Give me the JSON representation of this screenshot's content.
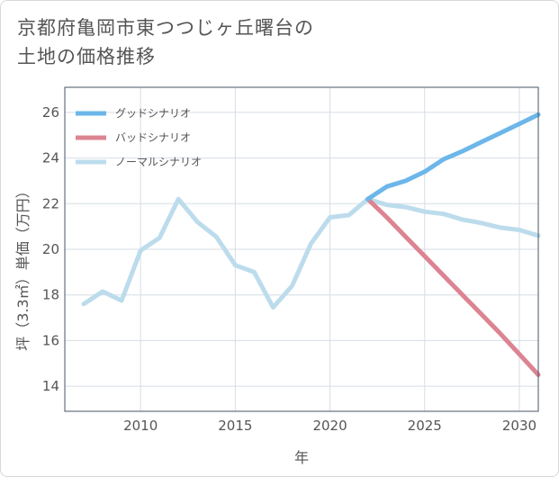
{
  "title_line1": "京都府亀岡市東つつじヶ丘曙台の",
  "title_line2": "土地の価格推移",
  "colors": {
    "good": "#6cb6ea",
    "bad": "#dc8491",
    "normal": "#bcdcec",
    "grid": "#d6dde5",
    "plot_border": "#445566"
  },
  "chart_data": {
    "type": "line",
    "title": "京都府亀岡市東つつじヶ丘曙台の土地の価格推移",
    "xlabel": "年",
    "ylabel": "坪（3.3㎡）単価（万円）",
    "xlim": [
      2006,
      2031
    ],
    "ylim": [
      12.9,
      27.1
    ],
    "xticks": [
      2010,
      2015,
      2020,
      2025,
      2030
    ],
    "yticks": [
      14,
      16,
      18,
      20,
      22,
      24,
      26
    ],
    "legend_position": "top-left",
    "series": [
      {
        "name": "グッドシナリオ",
        "color_key": "good",
        "x": [
          2022,
          2023,
          2024,
          2025,
          2026,
          2027,
          2028,
          2029,
          2030,
          2031
        ],
        "y": [
          22.2,
          22.75,
          23.0,
          23.4,
          23.95,
          24.3,
          24.7,
          25.1,
          25.5,
          25.9
        ]
      },
      {
        "name": "バッドシナリオ",
        "color_key": "bad",
        "x": [
          2022,
          2023,
          2024,
          2025,
          2026,
          2027,
          2028,
          2029,
          2030,
          2031
        ],
        "y": [
          22.2,
          21.4,
          20.55,
          19.7,
          18.85,
          18.0,
          17.15,
          16.3,
          15.4,
          14.5
        ]
      },
      {
        "name": "ノーマルシナリオ",
        "color_key": "normal",
        "x": [
          2007,
          2008,
          2009,
          2010,
          2011,
          2012,
          2013,
          2014,
          2015,
          2016,
          2017,
          2018,
          2019,
          2020,
          2021,
          2022,
          2023,
          2024,
          2025,
          2026,
          2027,
          2028,
          2029,
          2030,
          2031
        ],
        "y": [
          17.6,
          18.15,
          17.75,
          19.95,
          20.5,
          22.2,
          21.2,
          20.55,
          19.3,
          19.0,
          17.45,
          18.4,
          20.25,
          21.4,
          21.5,
          22.2,
          21.95,
          21.85,
          21.65,
          21.55,
          21.3,
          21.15,
          20.95,
          20.85,
          20.6
        ]
      }
    ]
  }
}
